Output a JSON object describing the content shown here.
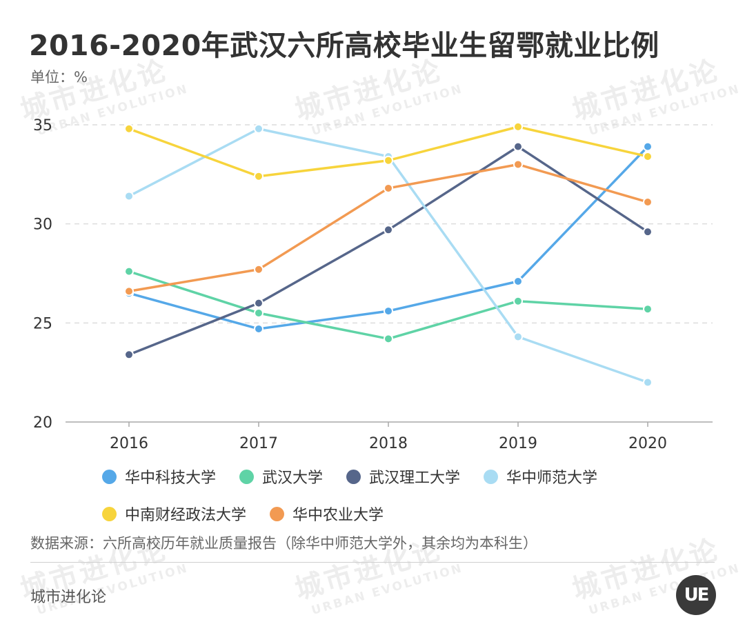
{
  "header": {
    "title": "2016-2020年武汉六所高校毕业生留鄂就业比例",
    "unit": "单位：%"
  },
  "watermark": {
    "cn": "城市进化论",
    "en": "URBAN EVOLUTION"
  },
  "chart_data": {
    "type": "line",
    "title": "2016-2020年武汉六所高校毕业生留鄂就业比例",
    "xlabel": "",
    "ylabel": "",
    "x": [
      "2016",
      "2017",
      "2018",
      "2019",
      "2020"
    ],
    "ylim": [
      20,
      35
    ],
    "yticks": [
      20,
      25,
      30,
      35
    ],
    "grid": true,
    "legend_position": "bottom",
    "series": [
      {
        "name": "华中科技大学",
        "color": "#55a8e8",
        "values": [
          26.5,
          24.7,
          25.6,
          27.1,
          33.9
        ]
      },
      {
        "name": "武汉大学",
        "color": "#5fd3a6",
        "values": [
          27.6,
          25.5,
          24.2,
          26.1,
          25.7
        ]
      },
      {
        "name": "武汉理工大学",
        "color": "#56668a",
        "values": [
          23.4,
          26.0,
          29.7,
          33.9,
          29.6
        ]
      },
      {
        "name": "华中师范大学",
        "color": "#a9dcf3",
        "values": [
          31.4,
          34.8,
          33.4,
          24.3,
          22.0
        ]
      },
      {
        "name": "中南财经政法大学",
        "color": "#f7d43c",
        "values": [
          34.8,
          32.4,
          33.2,
          34.9,
          33.4
        ]
      },
      {
        "name": "华中农业大学",
        "color": "#f29a52",
        "values": [
          26.6,
          27.7,
          31.8,
          33.0,
          31.1
        ]
      }
    ]
  },
  "footer": {
    "source": "数据来源：六所高校历年就业质量报告（除华中师范大学外，其余均为本科生）",
    "brand": "城市进化论",
    "logo_text": "UE"
  }
}
